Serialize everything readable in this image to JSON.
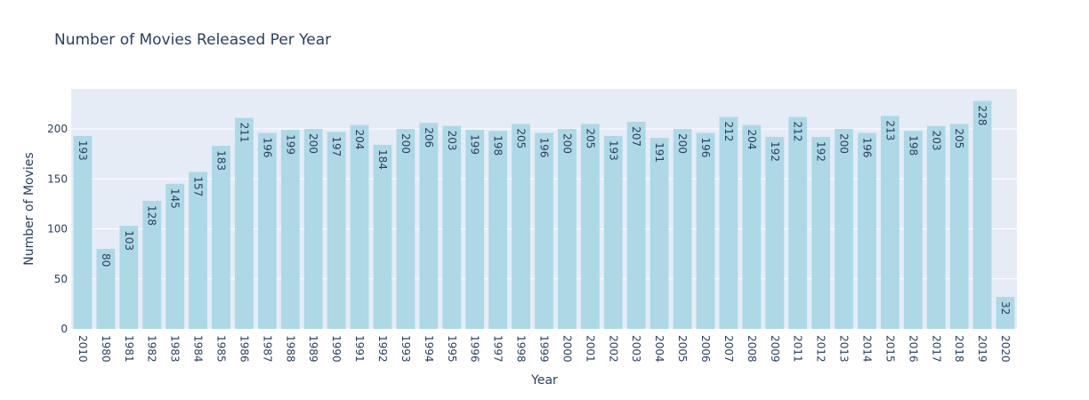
{
  "chart_data": {
    "type": "bar",
    "title": "Number of Movies Released Per Year",
    "xlabel": "Year",
    "ylabel": "Number of Movies",
    "categories": [
      "2010",
      "1980",
      "1981",
      "1982",
      "1983",
      "1984",
      "1985",
      "1986",
      "1987",
      "1988",
      "1989",
      "1990",
      "1991",
      "1992",
      "1993",
      "1994",
      "1995",
      "1996",
      "1997",
      "1998",
      "1999",
      "2000",
      "2001",
      "2002",
      "2003",
      "2004",
      "2005",
      "2006",
      "2007",
      "2008",
      "2009",
      "2011",
      "2012",
      "2013",
      "2014",
      "2015",
      "2016",
      "2017",
      "2018",
      "2019",
      "2020"
    ],
    "values": [
      193,
      80,
      103,
      128,
      145,
      157,
      183,
      211,
      196,
      199,
      200,
      197,
      204,
      184,
      200,
      206,
      203,
      199,
      198,
      205,
      196,
      200,
      205,
      193,
      207,
      191,
      200,
      196,
      212,
      204,
      192,
      212,
      192,
      200,
      196,
      213,
      198,
      203,
      205,
      228,
      32
    ],
    "ylim": [
      0,
      240
    ],
    "yticks": [
      0,
      50,
      100,
      150,
      200
    ],
    "grid": true,
    "legend": "none",
    "colors": {
      "bar": "#add8e6",
      "plot_bg": "#e5ecf6",
      "grid": "#ffffff",
      "text": "#2a3f5f"
    }
  }
}
